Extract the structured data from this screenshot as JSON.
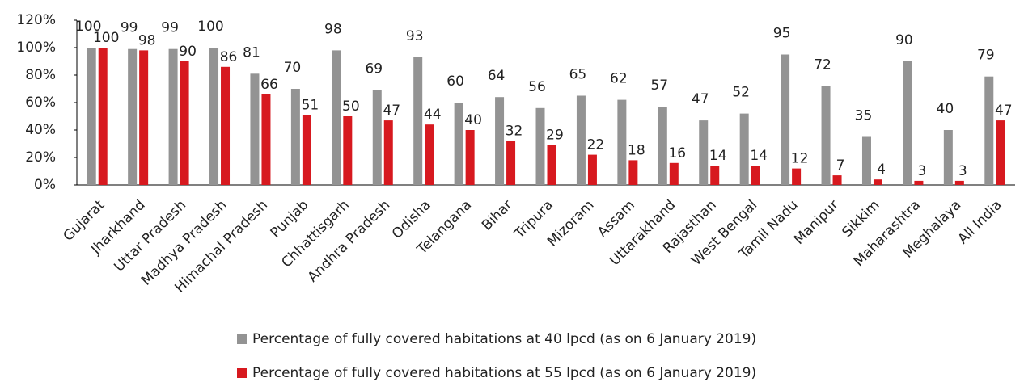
{
  "chart_data": {
    "type": "bar",
    "categories": [
      "Gujarat",
      "Jharkhand",
      "Uttar Pradesh",
      "Madhya Pradesh",
      "Himachal Pradesh",
      "Punjab",
      "Chhattisgarh",
      "Andhra Pradesh",
      "Odisha",
      "Telangana",
      "Bihar",
      "Tripura",
      "Mizoram",
      "Assam",
      "Uttarakhand",
      "Rajasthan",
      "West Bengal",
      "Tamil Nadu",
      "Manipur",
      "Sikkim",
      "Maharashtra",
      "Meghalaya",
      "All India"
    ],
    "series": [
      {
        "name": "Percentage of fully covered habitations at 40 lpcd (as on 6 January 2019)",
        "color": "#939393",
        "values": [
          100,
          99,
          99,
          100,
          81,
          70,
          98,
          69,
          93,
          60,
          64,
          56,
          65,
          62,
          57,
          47,
          52,
          95,
          72,
          35,
          90,
          40,
          79
        ]
      },
      {
        "name": "Percentage of fully covered habitations at 55 lpcd (as on 6 January 2019)",
        "color": "#d7191f",
        "values": [
          100,
          98,
          90,
          86,
          66,
          51,
          50,
          47,
          44,
          40,
          32,
          29,
          22,
          18,
          16,
          14,
          14,
          12,
          7,
          4,
          3,
          3,
          47
        ]
      }
    ],
    "ylim": [
      0,
      120
    ],
    "yticks": [
      {
        "value": 0,
        "label": "0%"
      },
      {
        "value": 20,
        "label": "20%"
      },
      {
        "value": 40,
        "label": "40%"
      },
      {
        "value": 60,
        "label": "60%"
      },
      {
        "value": 80,
        "label": "80%"
      },
      {
        "value": 100,
        "label": "100%"
      },
      {
        "value": 120,
        "label": "120%"
      }
    ],
    "grid": false,
    "legend": "bottom"
  }
}
